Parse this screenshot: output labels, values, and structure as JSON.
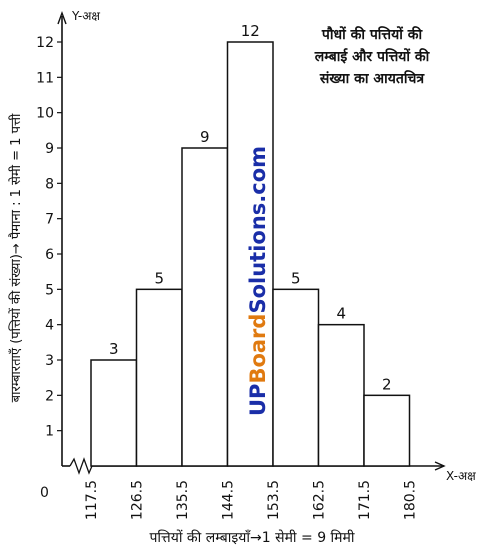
{
  "chart_data": {
    "type": "bar",
    "subtype": "histogram",
    "title_lines": [
      "पौधों की पत्तियों की",
      "लम्बाई और पत्तियों की",
      "संख्या का आयतचित्र"
    ],
    "x_axis_name": "X-अक्ष",
    "y_axis_name": "Y-अक्ष",
    "xlabel": "पत्तियों की लम्बाइयाँ→1 सेमी = 9 मिमी",
    "ylabel": "बारम्बारताएँ (पत्तियों की संख्या)→ पैमाना : 1 सेमी = 1 पत्ती",
    "origin_label": "0",
    "x_ticks": [
      "117.5",
      "126.5",
      "135.5",
      "144.5",
      "153.5",
      "162.5",
      "171.5",
      "180.5"
    ],
    "y_ticks": [
      "1",
      "2",
      "3",
      "4",
      "5",
      "6",
      "7",
      "8",
      "9",
      "10",
      "11",
      "12"
    ],
    "ylim": [
      0,
      12
    ],
    "bins": [
      {
        "from": 117.5,
        "to": 126.5,
        "value": 3
      },
      {
        "from": 126.5,
        "to": 135.5,
        "value": 5
      },
      {
        "from": 135.5,
        "to": 144.5,
        "value": 9
      },
      {
        "from": 144.5,
        "to": 153.5,
        "value": 12
      },
      {
        "from": 153.5,
        "to": 162.5,
        "value": 5
      },
      {
        "from": 162.5,
        "to": 171.5,
        "value": 4
      },
      {
        "from": 171.5,
        "to": 180.5,
        "value": 2
      }
    ],
    "axis_break": true,
    "grid": false
  },
  "watermark": "UPBoardSolutions.com",
  "colors": {
    "bar_fill": "#ffffff",
    "stroke": "#111111",
    "watermark_blue": "#1a2ea8",
    "watermark_orange": "#e07a10"
  }
}
